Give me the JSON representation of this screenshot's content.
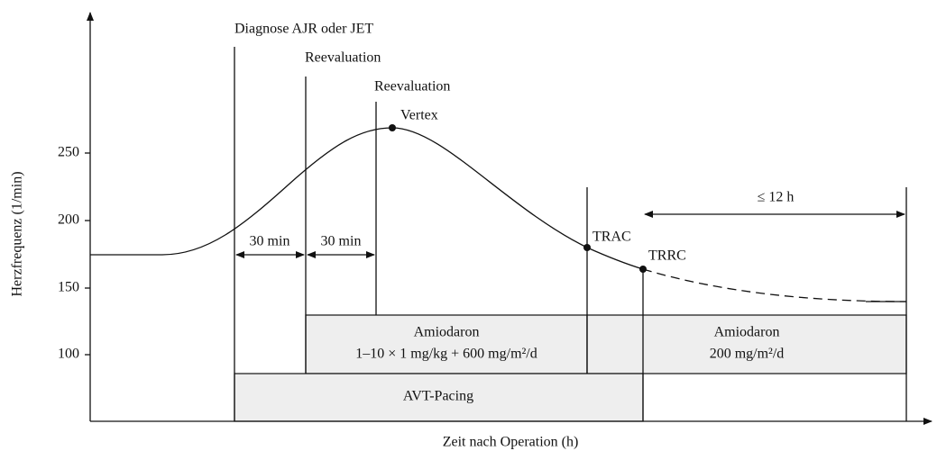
{
  "y_axis": {
    "label": "Herzfrequenz (1/min)",
    "ticks": [
      "100",
      "150",
      "200",
      "250"
    ]
  },
  "x_axis": {
    "label": "Zeit nach Operation (h)"
  },
  "events": {
    "diagnosis": "Diagnose AJR oder JET",
    "reevaluation_1": "Reevaluation",
    "reevaluation_2": "Reevaluation",
    "vertex": "Vertex",
    "trac": "TRAC",
    "trrc": "TRRC"
  },
  "intervals": {
    "first": "30 min",
    "second": "30 min",
    "max": "≤ 12 h"
  },
  "therapy": {
    "amiodaron_1": {
      "name": "Amiodaron",
      "dose": "1–10 × 1 mg/kg + 600 mg/m²/d"
    },
    "amiodaron_2": {
      "name": "Amiodaron",
      "dose": "200 mg/m²/d"
    },
    "pacing": "AVT-Pacing"
  }
}
